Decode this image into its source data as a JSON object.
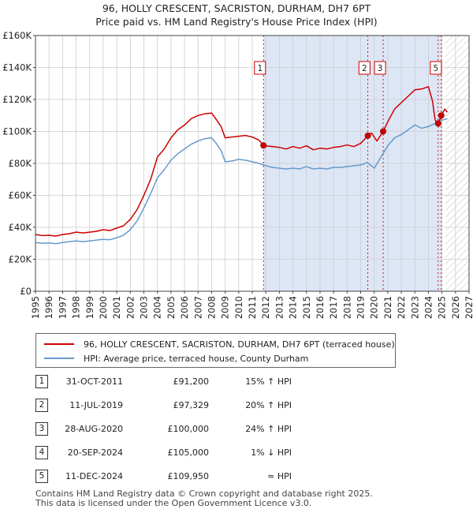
{
  "title_line1": "96, HOLLY CRESCENT, SACRISTON, DURHAM, DH7 6PT",
  "title_line2": "Price paid vs. HM Land Registry's House Price Index (HPI)",
  "colors": {
    "property": "#cc0000",
    "hpi": "#6699cc",
    "shade": "#dde6f5",
    "grid": "#cccccc"
  },
  "chart_data": {
    "type": "line",
    "title": "Price paid vs. HM Land Registry's House Price Index (HPI)",
    "xlim": [
      1995,
      2027
    ],
    "ylim": [
      0,
      160000
    ],
    "xticks": [
      1995,
      1996,
      1997,
      1998,
      1999,
      2000,
      2001,
      2002,
      2003,
      2004,
      2005,
      2006,
      2007,
      2008,
      2009,
      2010,
      2011,
      2012,
      2013,
      2014,
      2015,
      2016,
      2017,
      2018,
      2019,
      2020,
      2021,
      2022,
      2023,
      2024,
      2025,
      2026,
      2027
    ],
    "yticks": [
      {
        "value": 0,
        "label": "£0"
      },
      {
        "value": 20000,
        "label": "£20K"
      },
      {
        "value": 40000,
        "label": "£40K"
      },
      {
        "value": 60000,
        "label": "£60K"
      },
      {
        "value": 80000,
        "label": "£80K"
      },
      {
        "value": 100000,
        "label": "£100K"
      },
      {
        "value": 120000,
        "label": "£120K"
      },
      {
        "value": 140000,
        "label": "£140K"
      },
      {
        "value": 160000,
        "label": "£160K"
      }
    ],
    "shaded_range": [
      2011.83,
      2024.95
    ],
    "hatched_from": 2025.25,
    "series": [
      {
        "name": "96, HOLLY CRESCENT, SACRISTON, DURHAM, DH7 6PT (terraced house)",
        "key": "property",
        "x": [
          1995,
          1995.5,
          1996,
          1996.5,
          1997,
          1997.5,
          1998,
          1998.5,
          1999,
          1999.5,
          2000,
          2000.5,
          2001,
          2001.5,
          2002,
          2002.5,
          2003,
          2003.5,
          2004,
          2004.5,
          2005,
          2005.5,
          2006,
          2006.5,
          2007,
          2007.5,
          2008,
          2008.3,
          2008.7,
          2009,
          2009.5,
          2010,
          2010.5,
          2011,
          2011.5,
          2011.83,
          2012,
          2012.5,
          2013,
          2013.5,
          2014,
          2014.5,
          2015,
          2015.5,
          2016,
          2016.5,
          2017,
          2017.5,
          2018,
          2018.5,
          2019,
          2019.53,
          2019.8,
          2020.2,
          2020.66,
          2021,
          2021.5,
          2022,
          2022.5,
          2023,
          2023.5,
          2024,
          2024.3,
          2024.5,
          2024.72,
          2024.95,
          2025.2,
          2025.4
        ],
        "values": [
          35500,
          34800,
          35000,
          34500,
          35500,
          36000,
          37000,
          36500,
          37000,
          37500,
          38500,
          38000,
          39500,
          41000,
          45000,
          51000,
          60000,
          70000,
          84000,
          89000,
          96000,
          101000,
          104000,
          108000,
          110000,
          111000,
          111500,
          108000,
          103000,
          96000,
          96500,
          97000,
          97500,
          96500,
          94500,
          91200,
          91000,
          90500,
          90000,
          89000,
          90500,
          89500,
          91000,
          88500,
          89500,
          89000,
          90000,
          90500,
          91500,
          90500,
          92500,
          97300,
          99000,
          94000,
          100000,
          106000,
          114000,
          118000,
          122000,
          126000,
          126500,
          128000,
          119000,
          107000,
          105000,
          109950,
          114000,
          112000
        ]
      },
      {
        "name": "HPI: Average price, terraced house, County Durham",
        "key": "hpi",
        "x": [
          1995,
          1995.5,
          1996,
          1996.5,
          1997,
          1997.5,
          1998,
          1998.5,
          1999,
          1999.5,
          2000,
          2000.5,
          2001,
          2001.5,
          2002,
          2002.5,
          2003,
          2003.5,
          2004,
          2004.5,
          2005,
          2005.5,
          2006,
          2006.5,
          2007,
          2007.5,
          2008,
          2008.3,
          2008.7,
          2009,
          2009.5,
          2010,
          2010.5,
          2011,
          2011.5,
          2012,
          2012.5,
          2013,
          2013.5,
          2014,
          2014.5,
          2015,
          2015.5,
          2016,
          2016.5,
          2017,
          2017.5,
          2018,
          2018.5,
          2019,
          2019.5,
          2020,
          2020.5,
          2021,
          2021.5,
          2022,
          2022.5,
          2023,
          2023.5,
          2024,
          2024.5,
          2025,
          2025.4
        ],
        "values": [
          30500,
          30000,
          30200,
          29800,
          30500,
          31000,
          31500,
          31000,
          31500,
          32000,
          32500,
          32200,
          33500,
          35000,
          38500,
          44000,
          52000,
          61000,
          71000,
          76000,
          82000,
          86000,
          89000,
          92000,
          94000,
          95500,
          96000,
          93000,
          88000,
          81000,
          81500,
          82500,
          82000,
          81000,
          80000,
          78500,
          77500,
          77000,
          76500,
          77000,
          76500,
          78000,
          76500,
          77000,
          76500,
          77500,
          77500,
          78000,
          78500,
          79000,
          80500,
          77000,
          84000,
          91000,
          96000,
          98000,
          101000,
          104000,
          102000,
          103000,
          105000,
          107000,
          108000
        ]
      }
    ],
    "sales": [
      {
        "n": "1",
        "x": 2011.83,
        "price": 91200
      },
      {
        "n": "2",
        "x": 2019.53,
        "price": 97329
      },
      {
        "n": "3",
        "x": 2020.66,
        "price": 100000
      },
      {
        "n": "4",
        "x": 2024.72,
        "price": 105000
      },
      {
        "n": "5",
        "x": 2024.95,
        "price": 109950
      }
    ],
    "chart_labels": [
      {
        "n": "1",
        "x": 2011.57
      },
      {
        "n": "2",
        "x": 2019.28
      },
      {
        "n": "3",
        "x": 2020.43
      },
      {
        "n": "5",
        "x": 2024.55
      }
    ]
  },
  "legend": {
    "property_label": "96, HOLLY CRESCENT, SACRISTON, DURHAM, DH7 6PT (terraced house)",
    "hpi_label": "HPI: Average price, terraced house, County Durham"
  },
  "sales_table": [
    {
      "n": "1",
      "date": "31-OCT-2011",
      "price": "£91,200",
      "rel": "15% ↑ HPI"
    },
    {
      "n": "2",
      "date": "11-JUL-2019",
      "price": "£97,329",
      "rel": "20% ↑ HPI"
    },
    {
      "n": "3",
      "date": "28-AUG-2020",
      "price": "£100,000",
      "rel": "24% ↑ HPI"
    },
    {
      "n": "4",
      "date": "20-SEP-2024",
      "price": "£105,000",
      "rel": "1% ↓ HPI"
    },
    {
      "n": "5",
      "date": "11-DEC-2024",
      "price": "£109,950",
      "rel": "≈ HPI"
    }
  ],
  "footer_line1": "Contains HM Land Registry data © Crown copyright and database right 2025.",
  "footer_line2": "This data is licensed under the Open Government Licence v3.0."
}
